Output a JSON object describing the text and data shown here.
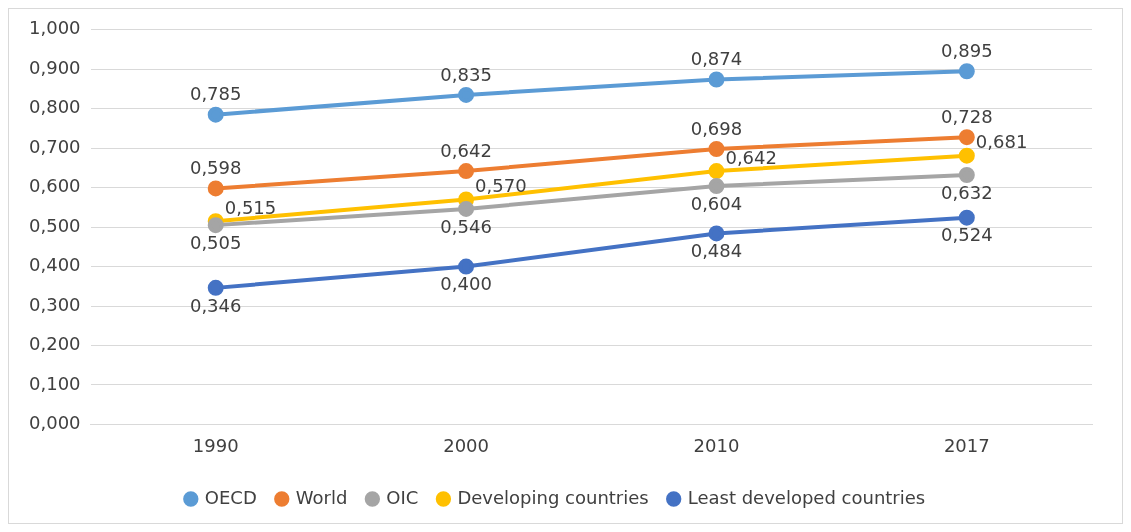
{
  "chart_data": {
    "type": "line",
    "categories": [
      "1990",
      "2000",
      "2010",
      "2017"
    ],
    "series": [
      {
        "name": "OECD",
        "color": "#5b9bd5",
        "values": [
          0.785,
          0.835,
          0.874,
          0.895
        ],
        "value_labels": [
          "0,785",
          "0,835",
          "0,874",
          "0,895"
        ]
      },
      {
        "name": "World",
        "color": "#ed7d31",
        "values": [
          0.598,
          0.642,
          0.698,
          0.728
        ],
        "value_labels": [
          "0,598",
          "0,642",
          "0,698",
          "0,728"
        ]
      },
      {
        "name": "OIC",
        "color": "#a5a5a5",
        "values": [
          0.505,
          0.546,
          0.604,
          0.632
        ],
        "value_labels": [
          "0,505",
          "0,546",
          "0,604",
          "0,632"
        ]
      },
      {
        "name": "Developing countries",
        "color": "#ffc000",
        "values": [
          0.515,
          0.57,
          0.642,
          0.681
        ],
        "value_labels": [
          "0,515",
          "0,570",
          "0,642",
          "0,681"
        ]
      },
      {
        "name": "Least developed countries",
        "color": "#4472c4",
        "values": [
          0.346,
          0.4,
          0.484,
          0.524
        ],
        "value_labels": [
          "0,346",
          "0,400",
          "0,484",
          "0,524"
        ]
      }
    ],
    "ylim": [
      0,
      1
    ],
    "yticks": [
      {
        "value": 0,
        "label": "0,000"
      },
      {
        "value": 0.1,
        "label": "0,100"
      },
      {
        "value": 0.2,
        "label": "0,200"
      },
      {
        "value": 0.3,
        "label": "0,300"
      },
      {
        "value": 0.4,
        "label": "0,400"
      },
      {
        "value": 0.5,
        "label": "0,500"
      },
      {
        "value": 0.6,
        "label": "0,600"
      },
      {
        "value": 0.7,
        "label": "0,700"
      },
      {
        "value": 0.8,
        "label": "0,800"
      },
      {
        "value": 0.9,
        "label": "0,900"
      },
      {
        "value": 1,
        "label": "1,000"
      }
    ],
    "grid": "y",
    "legend": "bottom",
    "marker": "circle",
    "line_style": "solid"
  }
}
